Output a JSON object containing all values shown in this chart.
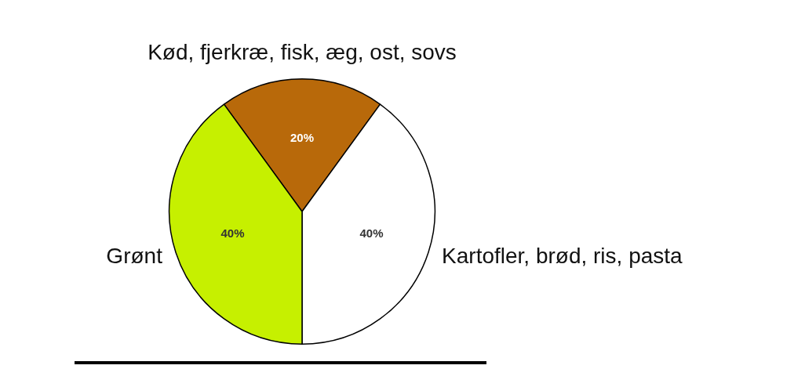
{
  "chart_data": {
    "type": "pie",
    "categories": [
      "Kød, fjerkræ, fisk, æg, ost, sovs",
      "Kartofler, brød, ris, pasta",
      "Grønt"
    ],
    "values": [
      20,
      40,
      40
    ],
    "value_labels": [
      "20%",
      "40%",
      "40%"
    ],
    "colors": [
      "#b8690a",
      "#ffffff",
      "#c6f000"
    ],
    "legend": false
  }
}
